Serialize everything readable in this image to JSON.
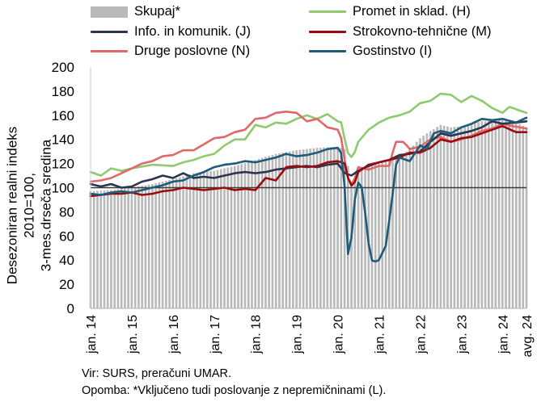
{
  "legend": {
    "skupaj": "Skupaj*",
    "promet": "Promet in sklad. (H)",
    "info": "Info. in komunik. (J)",
    "strokovno": "Strokovno-tehnične (M)",
    "druge": "Druge poslovne (N)",
    "gostinstvo": "Gostinstvo (I)"
  },
  "colors": {
    "skupaj": "#b9b9b9",
    "promet": "#8fca6c",
    "info": "#2b3550",
    "strokovno": "#9c0b0b",
    "druge": "#e06868",
    "gostinstvo": "#1d5b78",
    "reference_line": "#3a3a3a"
  },
  "ylabel_lines": [
    "Desezoniran realni indeks 2010=100,",
    "3-mes.drseča sredina"
  ],
  "source": "Vir: SURS, preračuni UMAR.",
  "note": "Opomba: *Vključeno tudi poslovanje z nepremičninami (L).",
  "chart_data": {
    "type": "bar+line",
    "x_axis": "monthly, jan. 2014 – avg. 2024",
    "x_tick_labels": [
      "jan. 14",
      "jan. 15",
      "jan. 16",
      "jan. 17",
      "jan. 18",
      "jan. 19",
      "jan. 20",
      "jan. 21",
      "jan. 22",
      "jan. 23",
      "jan. 24",
      "avg. 24"
    ],
    "y_ticks": [
      0,
      20,
      40,
      60,
      80,
      100,
      120,
      140,
      160,
      180,
      200
    ],
    "ylim": [
      0,
      200
    ],
    "reference_line": 100,
    "series": [
      {
        "name": "Skupaj*",
        "key": "skupaj",
        "kind": "bar",
        "anchors": [
          [
            2014.0,
            97
          ],
          [
            2014.5,
            98
          ],
          [
            2015.0,
            100
          ],
          [
            2015.5,
            103
          ],
          [
            2016.0,
            107
          ],
          [
            2016.5,
            112
          ],
          [
            2017.0,
            114
          ],
          [
            2017.5,
            118
          ],
          [
            2018.0,
            123
          ],
          [
            2018.5,
            128
          ],
          [
            2019.0,
            131
          ],
          [
            2019.5,
            133
          ],
          [
            2020.0,
            134
          ],
          [
            2020.17,
            132
          ],
          [
            2020.33,
            104
          ],
          [
            2020.5,
            112
          ],
          [
            2020.75,
            120
          ],
          [
            2021.0,
            121
          ],
          [
            2021.25,
            122
          ],
          [
            2021.5,
            126
          ],
          [
            2021.75,
            132
          ],
          [
            2022.0,
            141
          ],
          [
            2022.25,
            147
          ],
          [
            2022.5,
            152
          ],
          [
            2022.75,
            150
          ],
          [
            2023.0,
            151
          ],
          [
            2023.5,
            155
          ],
          [
            2024.0,
            156
          ],
          [
            2024.33,
            154
          ],
          [
            2024.58,
            150
          ]
        ]
      },
      {
        "name": "Promet in sklad. (H)",
        "key": "promet",
        "kind": "line",
        "anchors": [
          [
            2014.0,
            113
          ],
          [
            2014.25,
            110
          ],
          [
            2014.5,
            116
          ],
          [
            2014.75,
            114
          ],
          [
            2015.0,
            116
          ],
          [
            2015.5,
            119
          ],
          [
            2016.0,
            118
          ],
          [
            2016.25,
            121
          ],
          [
            2016.5,
            123
          ],
          [
            2016.75,
            126
          ],
          [
            2017.0,
            128
          ],
          [
            2017.25,
            135
          ],
          [
            2017.5,
            140
          ],
          [
            2017.75,
            140
          ],
          [
            2018.0,
            152
          ],
          [
            2018.25,
            150
          ],
          [
            2018.5,
            154
          ],
          [
            2018.75,
            153
          ],
          [
            2019.0,
            157
          ],
          [
            2019.25,
            160
          ],
          [
            2019.5,
            157
          ],
          [
            2019.75,
            161
          ],
          [
            2020.0,
            155
          ],
          [
            2020.1,
            154
          ],
          [
            2020.17,
            140
          ],
          [
            2020.27,
            126
          ],
          [
            2020.37,
            125
          ],
          [
            2020.5,
            138
          ],
          [
            2020.75,
            148
          ],
          [
            2021.0,
            154
          ],
          [
            2021.25,
            158
          ],
          [
            2021.5,
            160
          ],
          [
            2021.75,
            163
          ],
          [
            2022.0,
            170
          ],
          [
            2022.25,
            172
          ],
          [
            2022.5,
            178
          ],
          [
            2022.75,
            177
          ],
          [
            2023.0,
            171
          ],
          [
            2023.25,
            176
          ],
          [
            2023.5,
            172
          ],
          [
            2023.75,
            166
          ],
          [
            2024.0,
            162
          ],
          [
            2024.17,
            167
          ],
          [
            2024.33,
            165
          ],
          [
            2024.58,
            162
          ]
        ]
      },
      {
        "name": "Info. in komunik. (J)",
        "key": "info",
        "kind": "line",
        "anchors": [
          [
            2014.0,
            103
          ],
          [
            2014.25,
            101
          ],
          [
            2014.5,
            103
          ],
          [
            2014.75,
            100
          ],
          [
            2015.0,
            101
          ],
          [
            2015.25,
            105
          ],
          [
            2015.5,
            107
          ],
          [
            2015.75,
            110
          ],
          [
            2016.0,
            108
          ],
          [
            2016.25,
            112
          ],
          [
            2016.5,
            108
          ],
          [
            2016.75,
            109
          ],
          [
            2017.0,
            108
          ],
          [
            2017.25,
            110
          ],
          [
            2017.5,
            112
          ],
          [
            2017.75,
            113
          ],
          [
            2018.0,
            112
          ],
          [
            2018.25,
            113
          ],
          [
            2018.5,
            115
          ],
          [
            2018.75,
            116
          ],
          [
            2019.0,
            117
          ],
          [
            2019.25,
            118
          ],
          [
            2019.5,
            117
          ],
          [
            2019.75,
            119
          ],
          [
            2020.0,
            120
          ],
          [
            2020.17,
            112
          ],
          [
            2020.33,
            110
          ],
          [
            2020.5,
            114
          ],
          [
            2020.75,
            118
          ],
          [
            2021.0,
            121
          ],
          [
            2021.25,
            123
          ],
          [
            2021.5,
            127
          ],
          [
            2021.75,
            128
          ],
          [
            2022.0,
            130
          ],
          [
            2022.25,
            138
          ],
          [
            2022.5,
            145
          ],
          [
            2022.75,
            143
          ],
          [
            2023.0,
            145
          ],
          [
            2023.25,
            147
          ],
          [
            2023.5,
            150
          ],
          [
            2023.75,
            155
          ],
          [
            2024.0,
            153
          ],
          [
            2024.33,
            154
          ],
          [
            2024.58,
            155
          ]
        ]
      },
      {
        "name": "Strokovno-tehnične (M)",
        "key": "strokovno",
        "kind": "line",
        "anchors": [
          [
            2014.0,
            93
          ],
          [
            2014.25,
            94
          ],
          [
            2014.5,
            95
          ],
          [
            2014.75,
            95
          ],
          [
            2015.0,
            96
          ],
          [
            2015.25,
            94
          ],
          [
            2015.5,
            95
          ],
          [
            2015.75,
            97
          ],
          [
            2016.0,
            98
          ],
          [
            2016.25,
            100
          ],
          [
            2016.5,
            99
          ],
          [
            2016.75,
            98
          ],
          [
            2017.0,
            99
          ],
          [
            2017.25,
            100
          ],
          [
            2017.5,
            98
          ],
          [
            2017.75,
            99
          ],
          [
            2018.0,
            98
          ],
          [
            2018.25,
            108
          ],
          [
            2018.5,
            106
          ],
          [
            2018.75,
            117
          ],
          [
            2019.0,
            118
          ],
          [
            2019.25,
            117
          ],
          [
            2019.5,
            118
          ],
          [
            2019.75,
            121
          ],
          [
            2020.0,
            122
          ],
          [
            2020.17,
            120
          ],
          [
            2020.27,
            105
          ],
          [
            2020.37,
            100
          ],
          [
            2020.5,
            113
          ],
          [
            2020.75,
            119
          ],
          [
            2021.0,
            121
          ],
          [
            2021.25,
            123
          ],
          [
            2021.5,
            125
          ],
          [
            2021.75,
            129
          ],
          [
            2022.0,
            129
          ],
          [
            2022.25,
            133
          ],
          [
            2022.5,
            140
          ],
          [
            2022.75,
            138
          ],
          [
            2023.0,
            141
          ],
          [
            2023.25,
            142
          ],
          [
            2023.5,
            145
          ],
          [
            2023.75,
            148
          ],
          [
            2024.0,
            151
          ],
          [
            2024.33,
            146
          ],
          [
            2024.58,
            146
          ]
        ]
      },
      {
        "name": "Druge poslovne (N)",
        "key": "druge",
        "kind": "line",
        "anchors": [
          [
            2014.0,
            105
          ],
          [
            2014.25,
            106
          ],
          [
            2014.5,
            108
          ],
          [
            2014.75,
            112
          ],
          [
            2015.0,
            116
          ],
          [
            2015.25,
            120
          ],
          [
            2015.5,
            122
          ],
          [
            2015.75,
            126
          ],
          [
            2016.0,
            127
          ],
          [
            2016.25,
            131
          ],
          [
            2016.5,
            131
          ],
          [
            2016.75,
            136
          ],
          [
            2017.0,
            141
          ],
          [
            2017.25,
            142
          ],
          [
            2017.5,
            146
          ],
          [
            2017.75,
            148
          ],
          [
            2018.0,
            157
          ],
          [
            2018.25,
            158
          ],
          [
            2018.5,
            162
          ],
          [
            2018.75,
            163
          ],
          [
            2019.0,
            162
          ],
          [
            2019.25,
            155
          ],
          [
            2019.5,
            157
          ],
          [
            2019.75,
            150
          ],
          [
            2020.0,
            148
          ],
          [
            2020.1,
            140
          ],
          [
            2020.2,
            115
          ],
          [
            2020.3,
            101
          ],
          [
            2020.4,
            106
          ],
          [
            2020.5,
            117
          ],
          [
            2020.75,
            115
          ],
          [
            2021.0,
            118
          ],
          [
            2021.25,
            118
          ],
          [
            2021.4,
            138
          ],
          [
            2021.6,
            138
          ],
          [
            2021.75,
            132
          ],
          [
            2022.0,
            134
          ],
          [
            2022.25,
            140
          ],
          [
            2022.5,
            142
          ],
          [
            2022.75,
            138
          ],
          [
            2023.0,
            140
          ],
          [
            2023.25,
            143
          ],
          [
            2023.5,
            147
          ],
          [
            2023.75,
            149
          ],
          [
            2024.0,
            153
          ],
          [
            2024.25,
            151
          ],
          [
            2024.58,
            149
          ]
        ]
      },
      {
        "name": "Gostinstvo (I)",
        "key": "gostinstvo",
        "kind": "line",
        "anchors": [
          [
            2014.0,
            95
          ],
          [
            2014.25,
            94
          ],
          [
            2014.5,
            96
          ],
          [
            2014.75,
            97
          ],
          [
            2015.0,
            96
          ],
          [
            2015.25,
            98
          ],
          [
            2015.5,
            100
          ],
          [
            2015.75,
            102
          ],
          [
            2016.0,
            105
          ],
          [
            2016.25,
            106
          ],
          [
            2016.5,
            110
          ],
          [
            2016.75,
            113
          ],
          [
            2017.0,
            117
          ],
          [
            2017.25,
            119
          ],
          [
            2017.5,
            120
          ],
          [
            2017.75,
            122
          ],
          [
            2018.0,
            121
          ],
          [
            2018.25,
            123
          ],
          [
            2018.5,
            125
          ],
          [
            2018.75,
            128
          ],
          [
            2019.0,
            126
          ],
          [
            2019.25,
            127
          ],
          [
            2019.5,
            129
          ],
          [
            2019.75,
            132
          ],
          [
            2020.0,
            133
          ],
          [
            2020.08,
            130
          ],
          [
            2020.17,
            100
          ],
          [
            2020.25,
            45
          ],
          [
            2020.3,
            40
          ],
          [
            2020.37,
            80
          ],
          [
            2020.45,
            98
          ],
          [
            2020.53,
            108
          ],
          [
            2020.62,
            95
          ],
          [
            2020.7,
            68
          ],
          [
            2020.78,
            45
          ],
          [
            2020.85,
            38
          ],
          [
            2021.0,
            40
          ],
          [
            2021.17,
            52
          ],
          [
            2021.3,
            85
          ],
          [
            2021.42,
            120
          ],
          [
            2021.5,
            125
          ],
          [
            2021.75,
            122
          ],
          [
            2022.0,
            135
          ],
          [
            2022.17,
            132
          ],
          [
            2022.33,
            145
          ],
          [
            2022.5,
            147
          ],
          [
            2022.75,
            145
          ],
          [
            2023.0,
            150
          ],
          [
            2023.25,
            153
          ],
          [
            2023.5,
            157
          ],
          [
            2023.75,
            156
          ],
          [
            2024.0,
            157
          ],
          [
            2024.33,
            154
          ],
          [
            2024.58,
            158
          ]
        ]
      }
    ]
  }
}
